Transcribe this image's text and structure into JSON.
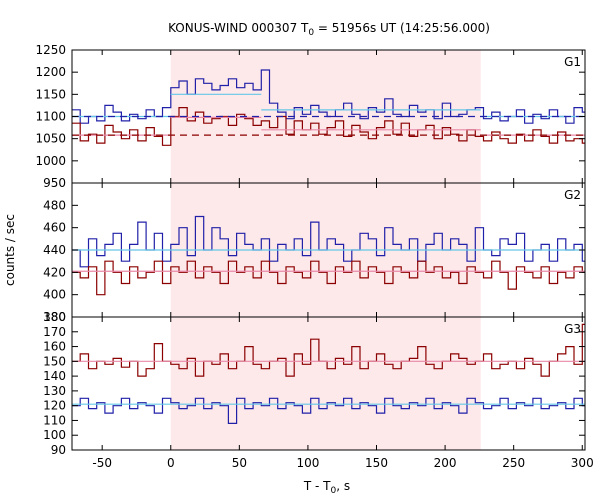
{
  "title": {
    "main": "KONUS-WIND 000307 T",
    "sub": "0",
    "rest": " = 51956s UT (14:25:56.000)"
  },
  "colors": {
    "highlight": "#fde8ea",
    "dark_red": "#8b0000",
    "blue": "#2020a8",
    "light_blue": "#66c8e8",
    "pink": "#e88aa8"
  },
  "chart_data": {
    "type": "line",
    "x_axis": {
      "label_main": "T - T",
      "label_sub": "0",
      "label_rest": ", s",
      "range": [
        -72,
        302
      ],
      "ticks": [
        -50,
        0,
        50,
        100,
        150,
        200,
        250,
        300
      ]
    },
    "y_axis_label": "counts / sec",
    "highlight_interval": [
      0,
      226
    ],
    "panels": [
      {
        "label": "G1",
        "ylim": [
          950,
          1250
        ],
        "yticks": [
          950,
          1000,
          1050,
          1100,
          1150,
          1200,
          1250
        ],
        "series": [
          {
            "color": "blue",
            "style": "step",
            "x": [
              -72,
              -66,
              -60,
              -54,
              -48,
              -42,
              -36,
              -30,
              -24,
              -18,
              -12,
              -6,
              0,
              6,
              12,
              18,
              24,
              30,
              36,
              42,
              48,
              54,
              60,
              66,
              72,
              78,
              84,
              90,
              96,
              102,
              108,
              114,
              120,
              126,
              132,
              138,
              144,
              150,
              156,
              162,
              168,
              174,
              180,
              186,
              192,
              198,
              204,
              210,
              216,
              222,
              228,
              234,
              240,
              246,
              252,
              258,
              264,
              270,
              276,
              282,
              288,
              294,
              300
            ],
            "y": [
              1115,
              1085,
              1100,
              1090,
              1125,
              1110,
              1090,
              1105,
              1095,
              1115,
              1100,
              1120,
              1165,
              1180,
              1150,
              1185,
              1175,
              1160,
              1170,
              1185,
              1165,
              1175,
              1160,
              1205,
              1130,
              1110,
              1095,
              1120,
              1105,
              1125,
              1110,
              1100,
              1115,
              1130,
              1105,
              1095,
              1120,
              1110,
              1140,
              1105,
              1100,
              1125,
              1110,
              1115,
              1095,
              1130,
              1100,
              1105,
              1115,
              1120,
              1095,
              1110,
              1090,
              1100,
              1115,
              1085,
              1105,
              1095,
              1115,
              1100,
              1085,
              1120,
              1110
            ]
          },
          {
            "color": "dark_red",
            "style": "step",
            "x": [
              -72,
              -66,
              -60,
              -54,
              -48,
              -42,
              -36,
              -30,
              -24,
              -18,
              -12,
              -6,
              0,
              6,
              12,
              18,
              24,
              30,
              36,
              42,
              48,
              54,
              60,
              66,
              72,
              78,
              84,
              90,
              96,
              102,
              108,
              114,
              120,
              126,
              132,
              138,
              144,
              150,
              156,
              162,
              168,
              174,
              180,
              186,
              192,
              198,
              204,
              210,
              216,
              222,
              228,
              234,
              240,
              246,
              252,
              258,
              264,
              270,
              276,
              282,
              288,
              294,
              300
            ],
            "y": [
              1085,
              1045,
              1060,
              1040,
              1080,
              1065,
              1050,
              1070,
              1045,
              1075,
              1055,
              1035,
              1100,
              1120,
              1090,
              1110,
              1085,
              1095,
              1100,
              1080,
              1105,
              1095,
              1080,
              1090,
              1075,
              1100,
              1060,
              1090,
              1070,
              1085,
              1060,
              1075,
              1090,
              1055,
              1080,
              1065,
              1050,
              1075,
              1090,
              1060,
              1085,
              1055,
              1070,
              1080,
              1050,
              1075,
              1060,
              1045,
              1070,
              1055,
              1045,
              1065,
              1050,
              1040,
              1060,
              1045,
              1070,
              1055,
              1040,
              1065,
              1045,
              1050,
              1040
            ]
          },
          {
            "color": "light_blue",
            "style": "segments",
            "segments": [
              {
                "x0": -72,
                "x1": 0,
                "y": 1100
              },
              {
                "x0": 0,
                "x1": 66,
                "y": 1150
              },
              {
                "x0": 66,
                "x1": 226,
                "y": 1115
              },
              {
                "x0": 226,
                "x1": 302,
                "y": 1100
              }
            ]
          },
          {
            "color": "pink",
            "style": "segments",
            "segments": [
              {
                "x0": -72,
                "x1": 0,
                "y": 1058
              },
              {
                "x0": 0,
                "x1": 66,
                "y": 1098
              },
              {
                "x0": 66,
                "x1": 226,
                "y": 1070
              },
              {
                "x0": 226,
                "x1": 302,
                "y": 1058
              }
            ]
          },
          {
            "color": "blue",
            "style": "dashed",
            "segments": [
              {
                "x0": -72,
                "x1": 302,
                "y": 1100
              }
            ]
          },
          {
            "color": "dark_red",
            "style": "dashed",
            "segments": [
              {
                "x0": -72,
                "x1": 302,
                "y": 1058
              }
            ]
          }
        ]
      },
      {
        "label": "G2",
        "ylim": [
          380,
          500
        ],
        "yticks": [
          380,
          400,
          420,
          440,
          460,
          480
        ],
        "series": [
          {
            "color": "blue",
            "style": "step",
            "x": [
              -72,
              -66,
              -60,
              -54,
              -48,
              -42,
              -36,
              -30,
              -24,
              -18,
              -12,
              -6,
              0,
              6,
              12,
              18,
              24,
              30,
              36,
              42,
              48,
              54,
              60,
              66,
              72,
              78,
              84,
              90,
              96,
              102,
              108,
              114,
              120,
              126,
              132,
              138,
              144,
              150,
              156,
              162,
              168,
              174,
              180,
              186,
              192,
              198,
              204,
              210,
              216,
              222,
              228,
              234,
              240,
              246,
              252,
              258,
              264,
              270,
              276,
              282,
              288,
              294,
              300
            ],
            "y": [
              440,
              425,
              450,
              435,
              445,
              455,
              430,
              445,
              465,
              440,
              455,
              430,
              445,
              460,
              435,
              470,
              440,
              460,
              450,
              435,
              455,
              445,
              440,
              450,
              430,
              445,
              440,
              450,
              435,
              465,
              440,
              450,
              445,
              430,
              440,
              455,
              450,
              435,
              460,
              445,
              440,
              450,
              430,
              445,
              455,
              440,
              450,
              445,
              430,
              460,
              440,
              435,
              450,
              445,
              455,
              430,
              440,
              445,
              430,
              450,
              440,
              445,
              430
            ]
          },
          {
            "color": "dark_red",
            "style": "step",
            "x": [
              -72,
              -66,
              -60,
              -54,
              -48,
              -42,
              -36,
              -30,
              -24,
              -18,
              -12,
              -6,
              0,
              6,
              12,
              18,
              24,
              30,
              36,
              42,
              48,
              54,
              60,
              66,
              72,
              78,
              84,
              90,
              96,
              102,
              108,
              114,
              120,
              126,
              132,
              138,
              144,
              150,
              156,
              162,
              168,
              174,
              180,
              186,
              192,
              198,
              204,
              210,
              216,
              222,
              228,
              234,
              240,
              246,
              252,
              258,
              264,
              270,
              276,
              282,
              288,
              294,
              300
            ],
            "y": [
              420,
              415,
              425,
              400,
              430,
              420,
              410,
              425,
              415,
              420,
              430,
              410,
              425,
              420,
              430,
              415,
              425,
              420,
              410,
              430,
              420,
              425,
              415,
              430,
              420,
              410,
              425,
              420,
              415,
              430,
              420,
              410,
              425,
              420,
              430,
              415,
              425,
              420,
              410,
              425,
              420,
              415,
              430,
              420,
              425,
              415,
              420,
              410,
              425,
              420,
              415,
              430,
              420,
              405,
              425,
              420,
              415,
              425,
              410,
              420,
              415,
              425,
              420
            ]
          },
          {
            "color": "light_blue",
            "style": "segments",
            "segments": [
              {
                "x0": -72,
                "x1": 302,
                "y": 440
              }
            ]
          },
          {
            "color": "pink",
            "style": "segments",
            "segments": [
              {
                "x0": -72,
                "x1": 302,
                "y": 421
              }
            ]
          }
        ]
      },
      {
        "label": "G3",
        "ylim": [
          90,
          180
        ],
        "yticks": [
          90,
          100,
          110,
          120,
          130,
          140,
          150,
          160,
          170,
          180
        ],
        "series": [
          {
            "color": "dark_red",
            "style": "step",
            "x": [
              -72,
              -66,
              -60,
              -54,
              -48,
              -42,
              -36,
              -30,
              -24,
              -18,
              -12,
              -6,
              0,
              6,
              12,
              18,
              24,
              30,
              36,
              42,
              48,
              54,
              60,
              66,
              72,
              78,
              84,
              90,
              96,
              102,
              108,
              114,
              120,
              126,
              132,
              138,
              144,
              150,
              156,
              162,
              168,
              174,
              180,
              186,
              192,
              198,
              204,
              210,
              216,
              222,
              228,
              234,
              240,
              246,
              252,
              258,
              264,
              270,
              276,
              282,
              288,
              294,
              300
            ],
            "y": [
              150,
              155,
              145,
              150,
              148,
              152,
              146,
              150,
              140,
              145,
              162,
              150,
              148,
              145,
              152,
              140,
              150,
              148,
              155,
              145,
              150,
              160,
              148,
              145,
              150,
              152,
              140,
              155,
              148,
              165,
              150,
              145,
              152,
              148,
              160,
              145,
              150,
              155,
              148,
              145,
              150,
              152,
              160,
              148,
              145,
              150,
              155,
              152,
              148,
              150,
              155,
              145,
              148,
              150,
              145,
              152,
              148,
              140,
              150,
              155,
              160,
              148,
              175
            ]
          },
          {
            "color": "blue",
            "style": "step",
            "x": [
              -72,
              -66,
              -60,
              -54,
              -48,
              -42,
              -36,
              -30,
              -24,
              -18,
              -12,
              -6,
              0,
              6,
              12,
              18,
              24,
              30,
              36,
              42,
              48,
              54,
              60,
              66,
              72,
              78,
              84,
              90,
              96,
              102,
              108,
              114,
              120,
              126,
              132,
              138,
              144,
              150,
              156,
              162,
              168,
              174,
              180,
              186,
              192,
              198,
              204,
              210,
              216,
              222,
              228,
              234,
              240,
              246,
              252,
              258,
              264,
              270,
              276,
              282,
              288,
              294,
              300
            ],
            "y": [
              120,
              125,
              118,
              122,
              115,
              120,
              125,
              118,
              122,
              120,
              115,
              125,
              122,
              118,
              120,
              125,
              118,
              122,
              120,
              108,
              125,
              118,
              122,
              120,
              125,
              118,
              122,
              120,
              115,
              125,
              118,
              122,
              120,
              125,
              118,
              122,
              120,
              115,
              125,
              120,
              118,
              122,
              120,
              125,
              118,
              122,
              120,
              115,
              125,
              122,
              118,
              120,
              125,
              118,
              122,
              120,
              125,
              118,
              120,
              122,
              118,
              125,
              120
            ]
          },
          {
            "color": "pink",
            "style": "segments",
            "segments": [
              {
                "x0": -72,
                "x1": 302,
                "y": 150
              }
            ]
          },
          {
            "color": "light_blue",
            "style": "segments",
            "segments": [
              {
                "x0": -72,
                "x1": 302,
                "y": 121
              }
            ]
          }
        ]
      }
    ]
  }
}
